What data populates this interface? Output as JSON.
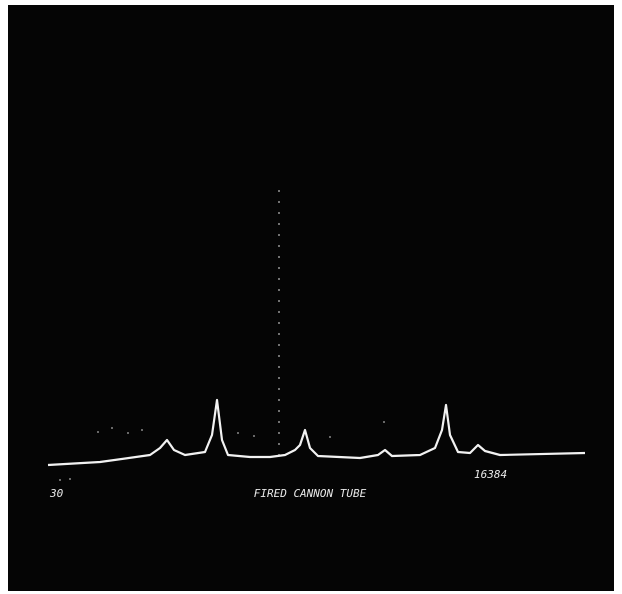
{
  "labels": {
    "start": "30",
    "title": "FIRED CANNON TUBE",
    "count": "16384"
  }
}
